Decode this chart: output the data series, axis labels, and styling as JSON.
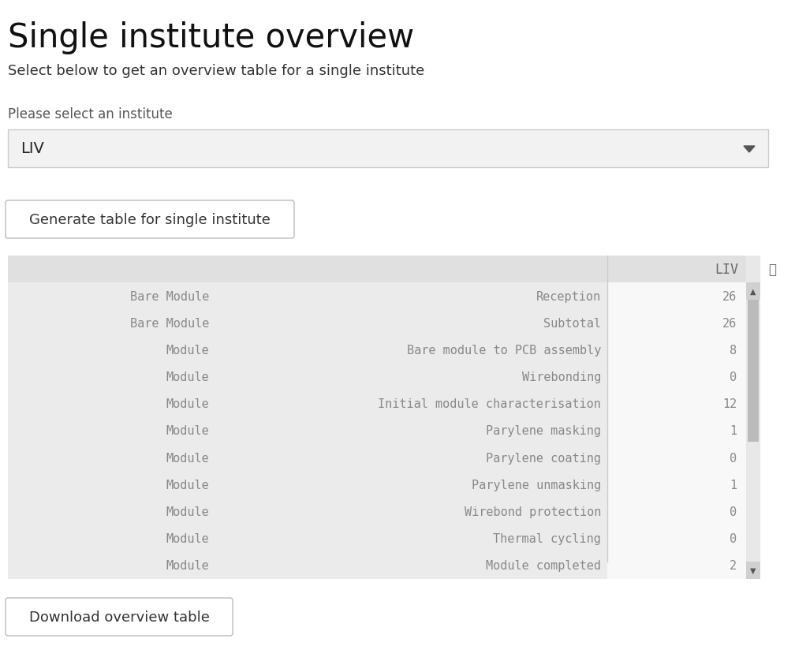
{
  "title": "Single institute overview",
  "subtitle": "Select below to get an overview table for a single institute",
  "label_select": "Please select an institute",
  "dropdown_value": "LIV",
  "button1_text": "Generate table for single institute",
  "button2_text": "Download overview table",
  "table_header": "LIV",
  "table_rows": [
    {
      "col1": "Bare Module",
      "col2": "Reception",
      "col3": "26"
    },
    {
      "col1": "Bare Module",
      "col2": "Subtotal",
      "col3": "26"
    },
    {
      "col1": "Module",
      "col2": "Bare module to PCB assembly",
      "col3": "8"
    },
    {
      "col1": "Module",
      "col2": "Wirebonding",
      "col3": "0"
    },
    {
      "col1": "Module",
      "col2": "Initial module characterisation",
      "col3": "12"
    },
    {
      "col1": "Module",
      "col2": "Parylene masking",
      "col3": "1"
    },
    {
      "col1": "Module",
      "col2": "Parylene coating",
      "col3": "0"
    },
    {
      "col1": "Module",
      "col2": "Parylene unmasking",
      "col3": "1"
    },
    {
      "col1": "Module",
      "col2": "Wirebond protection",
      "col3": "0"
    },
    {
      "col1": "Module",
      "col2": "Thermal cycling",
      "col3": "0"
    },
    {
      "col1": "Module",
      "col2": "Module completed",
      "col3": "2"
    }
  ],
  "bg_color": "#ffffff",
  "table_bg": "#ebebeb",
  "table_right_bg": "#f5f5f5",
  "table_header_bg": "#e0e0e0",
  "dropdown_bg": "#f2f2f2",
  "dropdown_border": "#cccccc",
  "button_bg": "#ffffff",
  "button_border": "#bbbbbb",
  "text_color": "#333333",
  "table_text_color": "#888888",
  "scrollbar_track": "#e8e8e8",
  "scrollbar_thumb": "#bbbbbb",
  "divider_color": "#cccccc",
  "header_divider": "#cccccc"
}
